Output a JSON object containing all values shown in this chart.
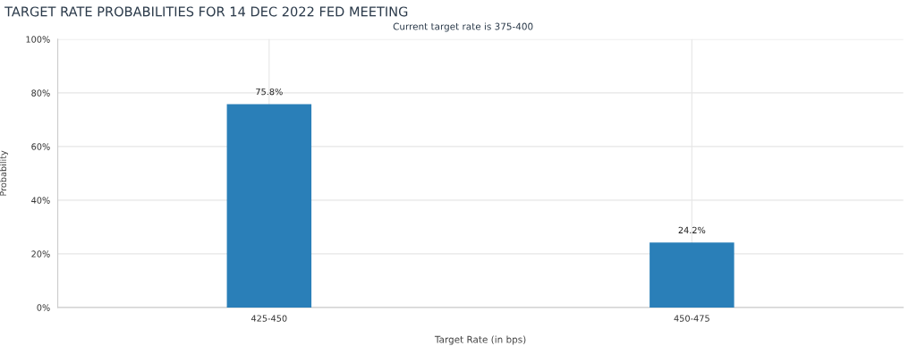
{
  "chart_data": {
    "type": "bar",
    "title": "TARGET RATE PROBABILITIES FOR 14 DEC 2022 FED MEETING",
    "subtitle": "Current target rate is 375-400",
    "xlabel": "Target Rate (in bps)",
    "ylabel": "Probability",
    "categories": [
      "425-450",
      "450-475"
    ],
    "values": [
      75.8,
      24.2
    ],
    "value_labels": [
      "75.8%",
      "24.2%"
    ],
    "color": "#2a7fb8",
    "ylim": [
      0,
      100
    ],
    "yticks": [
      {
        "value": 0,
        "label": "0%"
      },
      {
        "value": 20,
        "label": "20%"
      },
      {
        "value": 40,
        "label": "40%"
      },
      {
        "value": 60,
        "label": "60%"
      },
      {
        "value": 80,
        "label": "80%"
      },
      {
        "value": 100,
        "label": "100%"
      }
    ],
    "grid": true,
    "legend": false
  }
}
